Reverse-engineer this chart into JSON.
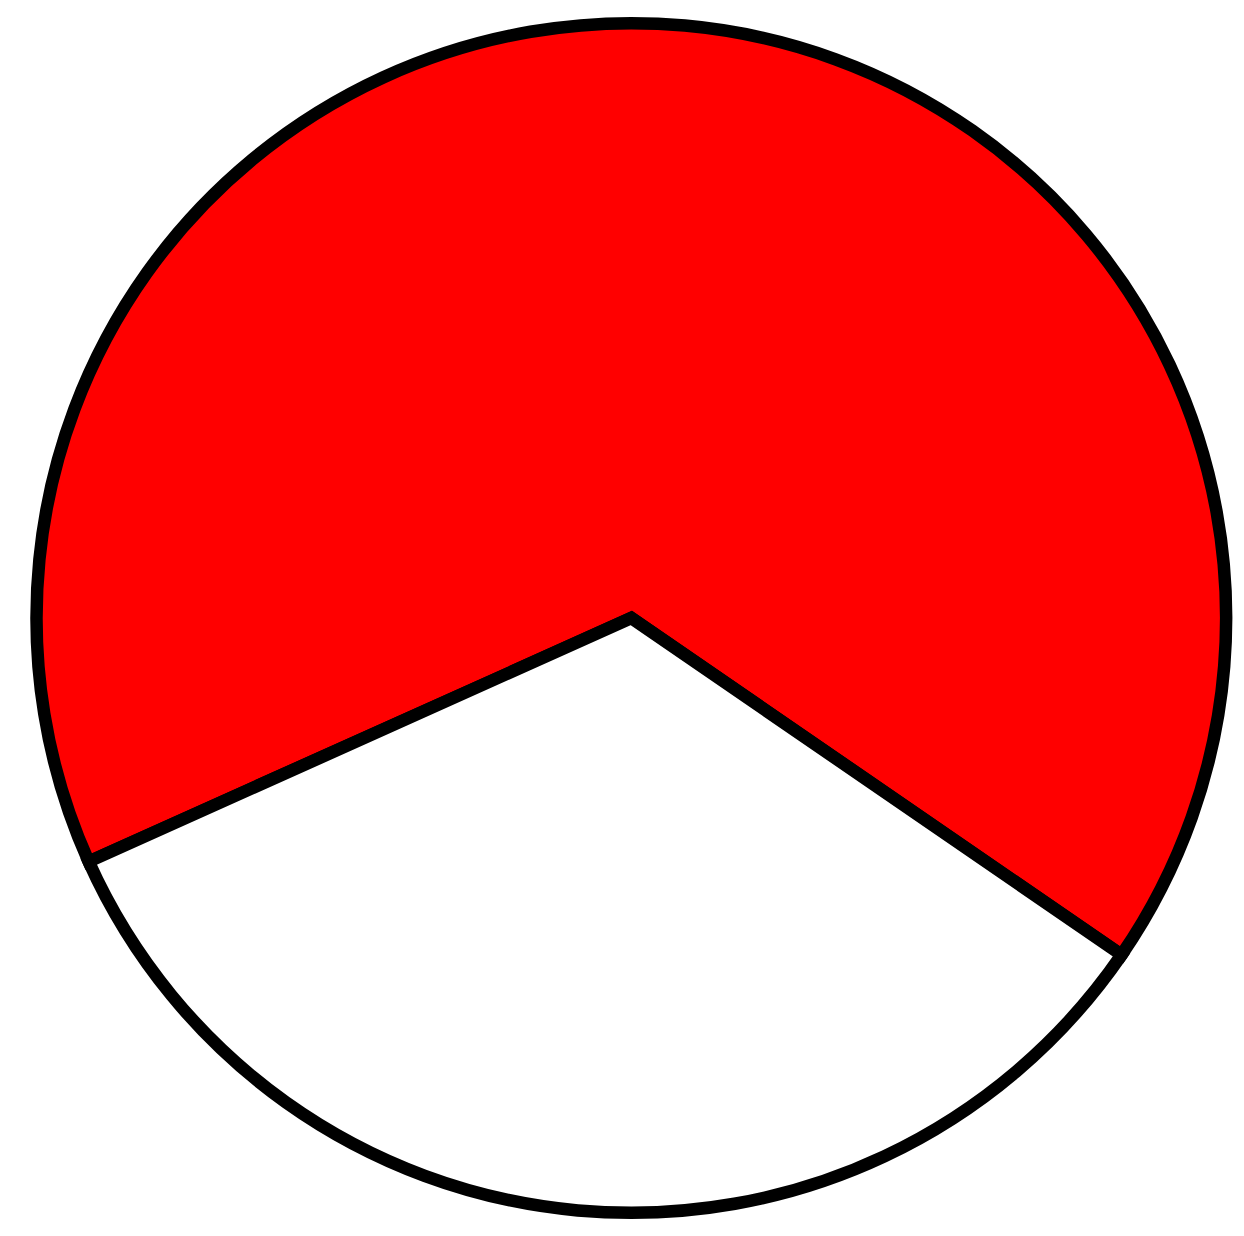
{
  "chart_data": {
    "type": "pie",
    "categories": [
      null,
      null
    ],
    "values": [
      66.3,
      33.7
    ],
    "colors": [
      "#ff0000",
      "#ffffff"
    ]
  }
}
